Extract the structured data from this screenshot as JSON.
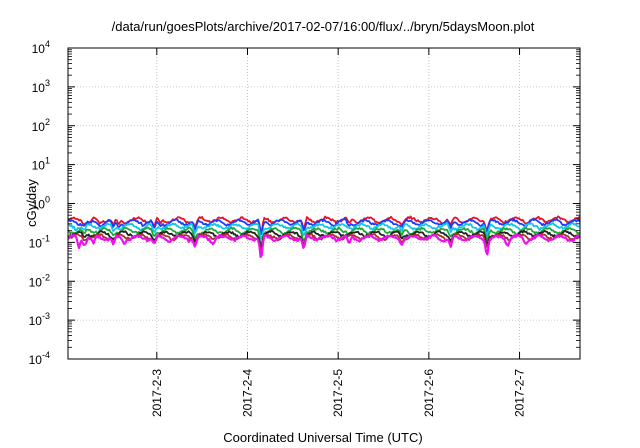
{
  "chart_data": {
    "type": "line",
    "title": "/data/run/goesPlots/archive/2017-02-07/16:00/flux/../bryn/5daysMoon.plot",
    "xlabel": "Coordinated Universal Time (UTC)",
    "ylabel": "cGy/day",
    "yscale": "log",
    "ylim": [
      0.0001,
      10000
    ],
    "y_ticks": [
      {
        "base": "10",
        "exp": "-4"
      },
      {
        "base": "10",
        "exp": "-3"
      },
      {
        "base": "10",
        "exp": "-2"
      },
      {
        "base": "10",
        "exp": "-1"
      },
      {
        "base": "10",
        "exp": "0"
      },
      {
        "base": "10",
        "exp": "1"
      },
      {
        "base": "10",
        "exp": "2"
      },
      {
        "base": "10",
        "exp": "3"
      },
      {
        "base": "10",
        "exp": "4"
      }
    ],
    "xlim": [
      "2017-02-02 00:30",
      "2017-02-07 16:00"
    ],
    "x_ticks": [
      "2017-2-3",
      "2017-2-4",
      "2017-2-5",
      "2017-2-6",
      "2017-2-7"
    ],
    "grid": true,
    "series": [
      {
        "color": "#e8102a",
        "base": 0.38,
        "dips": [
          [
            0.18,
            0.29
          ],
          [
            0.24,
            0.32
          ],
          [
            0.35,
            0.3
          ],
          [
            0.5,
            0.27
          ],
          [
            0.56,
            0.28
          ],
          [
            0.62,
            0.3
          ],
          [
            0.95,
            0.25
          ],
          [
            1.02,
            0.3
          ],
          [
            1.4,
            0.23
          ],
          [
            2.13,
            0.14
          ],
          [
            2.6,
            0.2
          ],
          [
            3.1,
            0.3
          ],
          [
            3.68,
            0.28
          ],
          [
            4.22,
            0.27
          ],
          [
            4.62,
            0.2
          ],
          [
            5.05,
            0.3
          ]
        ]
      },
      {
        "color": "#1a3cff",
        "base": 0.33,
        "dips": [
          [
            0.18,
            0.26
          ],
          [
            0.24,
            0.28
          ],
          [
            0.35,
            0.26
          ],
          [
            0.5,
            0.24
          ],
          [
            0.56,
            0.24
          ],
          [
            0.62,
            0.26
          ],
          [
            0.95,
            0.22
          ],
          [
            1.02,
            0.26
          ],
          [
            1.4,
            0.2
          ],
          [
            2.13,
            0.12
          ],
          [
            2.6,
            0.17
          ],
          [
            3.1,
            0.26
          ],
          [
            3.68,
            0.24
          ],
          [
            4.22,
            0.23
          ],
          [
            4.62,
            0.17
          ],
          [
            5.05,
            0.26
          ]
        ]
      },
      {
        "color": "#11c6e6",
        "base": 0.26,
        "dips": [
          [
            0.18,
            0.2
          ],
          [
            0.5,
            0.19
          ],
          [
            0.95,
            0.17
          ],
          [
            1.4,
            0.16
          ],
          [
            2.13,
            0.09
          ],
          [
            2.6,
            0.13
          ],
          [
            3.68,
            0.19
          ],
          [
            4.22,
            0.18
          ],
          [
            4.62,
            0.13
          ]
        ]
      },
      {
        "color": "#1fa83a",
        "base": 0.2,
        "dips": [
          [
            0.18,
            0.16
          ],
          [
            0.5,
            0.15
          ],
          [
            0.95,
            0.14
          ],
          [
            1.4,
            0.12
          ],
          [
            2.13,
            0.07
          ],
          [
            2.6,
            0.1
          ],
          [
            3.68,
            0.15
          ],
          [
            4.22,
            0.14
          ],
          [
            4.62,
            0.1
          ]
        ]
      },
      {
        "color": "#222222",
        "base": 0.165,
        "dips": [
          [
            0.18,
            0.13
          ],
          [
            0.5,
            0.12
          ],
          [
            0.95,
            0.11
          ],
          [
            1.4,
            0.1
          ],
          [
            2.13,
            0.06
          ],
          [
            2.6,
            0.08
          ],
          [
            3.68,
            0.12
          ],
          [
            4.22,
            0.11
          ],
          [
            4.62,
            0.08
          ]
        ]
      },
      {
        "color": "#a8332a",
        "base": 0.14,
        "dips": [
          [
            0.18,
            0.11
          ],
          [
            0.5,
            0.1
          ],
          [
            0.95,
            0.095
          ],
          [
            1.4,
            0.085
          ],
          [
            2.13,
            0.05
          ],
          [
            2.6,
            0.07
          ],
          [
            3.68,
            0.1
          ],
          [
            4.22,
            0.095
          ],
          [
            4.62,
            0.07
          ]
        ]
      },
      {
        "color": "#ee11ee",
        "base": 0.13,
        "dips": [
          [
            0.12,
            0.07
          ],
          [
            0.18,
            0.08
          ],
          [
            0.28,
            0.09
          ],
          [
            0.5,
            0.085
          ],
          [
            0.62,
            0.09
          ],
          [
            0.95,
            0.09
          ],
          [
            1.12,
            0.1
          ],
          [
            1.4,
            0.075
          ],
          [
            1.6,
            0.09
          ],
          [
            2.13,
            0.024
          ],
          [
            2.6,
            0.06
          ],
          [
            3.1,
            0.09
          ],
          [
            3.68,
            0.085
          ],
          [
            4.22,
            0.075
          ],
          [
            4.62,
            0.04
          ],
          [
            4.85,
            0.08
          ],
          [
            5.05,
            0.09
          ]
        ]
      }
    ]
  }
}
